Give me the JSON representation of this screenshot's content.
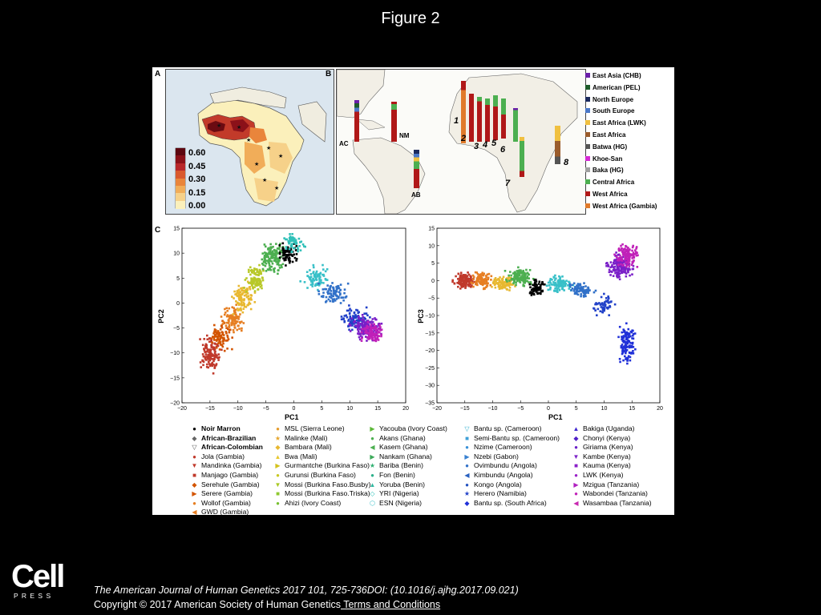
{
  "title": "Figure 2",
  "panels": {
    "a": "A",
    "b": "B",
    "c": "C"
  },
  "colorbar": {
    "ticks": [
      "0.60",
      "0.45",
      "0.30",
      "0.15",
      "0.00"
    ],
    "colors": [
      "#5c0710",
      "#8b1119",
      "#b8272a",
      "#d9592d",
      "#e9853b",
      "#f1ad59",
      "#f6d189",
      "#fbf0bb"
    ]
  },
  "map_b": {
    "site_labels": [
      "AC",
      "NM",
      "AB",
      "1",
      "2",
      "3",
      "4",
      "5",
      "6",
      "7",
      "8"
    ],
    "legend": [
      {
        "label": "East Asia (CHB)",
        "color": "#6a1fa8"
      },
      {
        "label": "American (PEL)",
        "color": "#1e5c2a"
      },
      {
        "label": "North Europe",
        "color": "#1d2b5e"
      },
      {
        "label": "South Europe",
        "color": "#4b78c8"
      },
      {
        "label": "East Africa (LWK)",
        "color": "#f0c040"
      },
      {
        "label": "East Africa",
        "color": "#9a5c2c"
      },
      {
        "label": "Batwa (HG)",
        "color": "#555555"
      },
      {
        "label": "Khoe-San",
        "color": "#d42ad4"
      },
      {
        "label": "Baka (HG)",
        "color": "#a0a0a0"
      },
      {
        "label": "Central Africa",
        "color": "#4caf50"
      },
      {
        "label": "West Africa",
        "color": "#b01818"
      },
      {
        "label": "West Africa (Gambia)",
        "color": "#e07a2a"
      }
    ]
  },
  "pca": {
    "left": {
      "xlabel": "PC1",
      "ylabel": "PC2",
      "xticks": [
        "−20",
        "−15",
        "−10",
        "−5",
        "0",
        "5",
        "10",
        "15",
        "20"
      ],
      "yticks": [
        "15",
        "10",
        "5",
        "0",
        "−5",
        "−10",
        "−15",
        "−20"
      ]
    },
    "right": {
      "xlabel": "PC1",
      "ylabel": "PC3",
      "xticks": [
        "−20",
        "−15",
        "−10",
        "−5",
        "0",
        "5",
        "10",
        "15",
        "20"
      ],
      "yticks": [
        "15",
        "10",
        "5",
        "0",
        "−5",
        "−10",
        "−15",
        "−20",
        "−25",
        "−30",
        "−35"
      ]
    }
  },
  "legend_c": [
    [
      {
        "label": "Noir Marron",
        "bold": true,
        "symbol": "●",
        "color": "#000000"
      },
      {
        "label": "African-Brazilian",
        "bold": true,
        "symbol": "◆",
        "color": "#666666"
      },
      {
        "label": "African-Colombian",
        "bold": true,
        "symbol": "▽",
        "color": "#555555"
      },
      {
        "label": "Jola (Gambia)",
        "symbol": "●",
        "color": "#c0392b"
      },
      {
        "label": "Mandinka (Gambia)",
        "symbol": "▼",
        "color": "#c0392b"
      },
      {
        "label": "Manjago (Gambia)",
        "symbol": "■",
        "color": "#c0392b"
      },
      {
        "label": "Serehule (Gambia)",
        "symbol": "◆",
        "color": "#d35400"
      },
      {
        "label": "Serere (Gambia)",
        "symbol": "▶",
        "color": "#d35400"
      },
      {
        "label": "Wollof (Gambia)",
        "symbol": "●",
        "color": "#e67e22"
      },
      {
        "label": "GWD (Gambia)",
        "symbol": "◀",
        "color": "#e67e22"
      }
    ],
    [
      {
        "label": "MSL (Sierra Leone)",
        "symbol": "●",
        "color": "#e59b2b"
      },
      {
        "label": "Malinke (Mali)",
        "symbol": "★",
        "color": "#e5a52b"
      },
      {
        "label": "Bambara (Mali)",
        "symbol": "◆",
        "color": "#e8b830"
      },
      {
        "label": "Bwa (Mali)",
        "symbol": "▲",
        "color": "#e8c830"
      },
      {
        "label": "Gurmantche (Burkina Faso)",
        "symbol": "▶",
        "color": "#d4c21c"
      },
      {
        "label": "Gurunsi (Burkina Faso)",
        "symbol": "●",
        "color": "#c8c820"
      },
      {
        "label": "Mossi (Burkina Faso.Busby)",
        "symbol": "▼",
        "color": "#a8c820"
      },
      {
        "label": "Mossi (Burkina Faso.Triska)",
        "symbol": "■",
        "color": "#8fc830"
      },
      {
        "label": "Ahizi (Ivory Coast)",
        "symbol": "●",
        "color": "#78c030"
      }
    ],
    [
      {
        "label": "Yacouba (Ivory Coast)",
        "symbol": "▶",
        "color": "#5cb838"
      },
      {
        "label": "Akans (Ghana)",
        "symbol": "●",
        "color": "#4caf50"
      },
      {
        "label": "Kasem (Ghana)",
        "symbol": "◀",
        "color": "#4caf50"
      },
      {
        "label": "Nankam (Ghana)",
        "symbol": "▶",
        "color": "#3daa5a"
      },
      {
        "label": "Bariba (Benin)",
        "symbol": "★",
        "color": "#2fb070"
      },
      {
        "label": "Fon (Benin)",
        "symbol": "●",
        "color": "#2db08a"
      },
      {
        "label": "Yoruba (Benin)",
        "symbol": "▲",
        "color": "#30b8a0"
      },
      {
        "label": "YRI (Nigeria)",
        "symbol": "◇",
        "color": "#30c0b8"
      },
      {
        "label": "ESN (Nigeria)",
        "symbol": "⬡",
        "color": "#38c0c8"
      }
    ],
    [
      {
        "label": "Bantu sp. (Cameroon)",
        "symbol": "▽",
        "color": "#30b0d0"
      },
      {
        "label": "Semi-Bantu sp. (Cameroon)",
        "symbol": "■",
        "color": "#3fa0d8"
      },
      {
        "label": "Nzime (Cameroon)",
        "symbol": "●",
        "color": "#3890d8"
      },
      {
        "label": "Nzebi (Gabon)",
        "symbol": "▶",
        "color": "#3880d0"
      },
      {
        "label": "Ovimbundu (Angola)",
        "symbol": "●",
        "color": "#3070c8"
      },
      {
        "label": "Kimbundu (Angola)",
        "symbol": "◀",
        "color": "#2860c0"
      },
      {
        "label": "Kongo (Angola)",
        "symbol": "●",
        "color": "#2050c0"
      },
      {
        "label": "Herero (Namibia)",
        "symbol": "★",
        "color": "#2040c8"
      },
      {
        "label": "Bantu sp. (South Africa)",
        "symbol": "◆",
        "color": "#2030d8"
      }
    ],
    [
      {
        "label": "Bakiga (Uganda)",
        "symbol": "▲",
        "color": "#4028d0"
      },
      {
        "label": "Chonyi (Kenya)",
        "symbol": "◆",
        "color": "#5020c8"
      },
      {
        "label": "Giriama (Kenya)",
        "symbol": "●",
        "color": "#6a1fc8"
      },
      {
        "label": "Kambe (Kenya)",
        "symbol": "▼",
        "color": "#7a1fc8"
      },
      {
        "label": "Kauma (Kenya)",
        "symbol": "■",
        "color": "#8a1fc8"
      },
      {
        "label": "LWK (Kenya)",
        "symbol": "●",
        "color": "#9a1fc8"
      },
      {
        "label": "Mzigua (Tanzania)",
        "symbol": "▶",
        "color": "#b020c0"
      },
      {
        "label": "Wabondei (Tanzania)",
        "symbol": "●",
        "color": "#c020b8"
      },
      {
        "label": "Wasambaa (Tanzania)",
        "symbol": "◀",
        "color": "#c828b0"
      }
    ]
  ],
  "footer": {
    "logo_top": "Cell",
    "logo_bottom": "P R E S S",
    "citation": "The American Journal of Human Genetics 2017 101, 725-736DOI: (10.1016/j.ajhg.2017.09.021)",
    "copyright": "Copyright © 2017 American Society of Human Genetics",
    "terms": " Terms and Conditions"
  }
}
